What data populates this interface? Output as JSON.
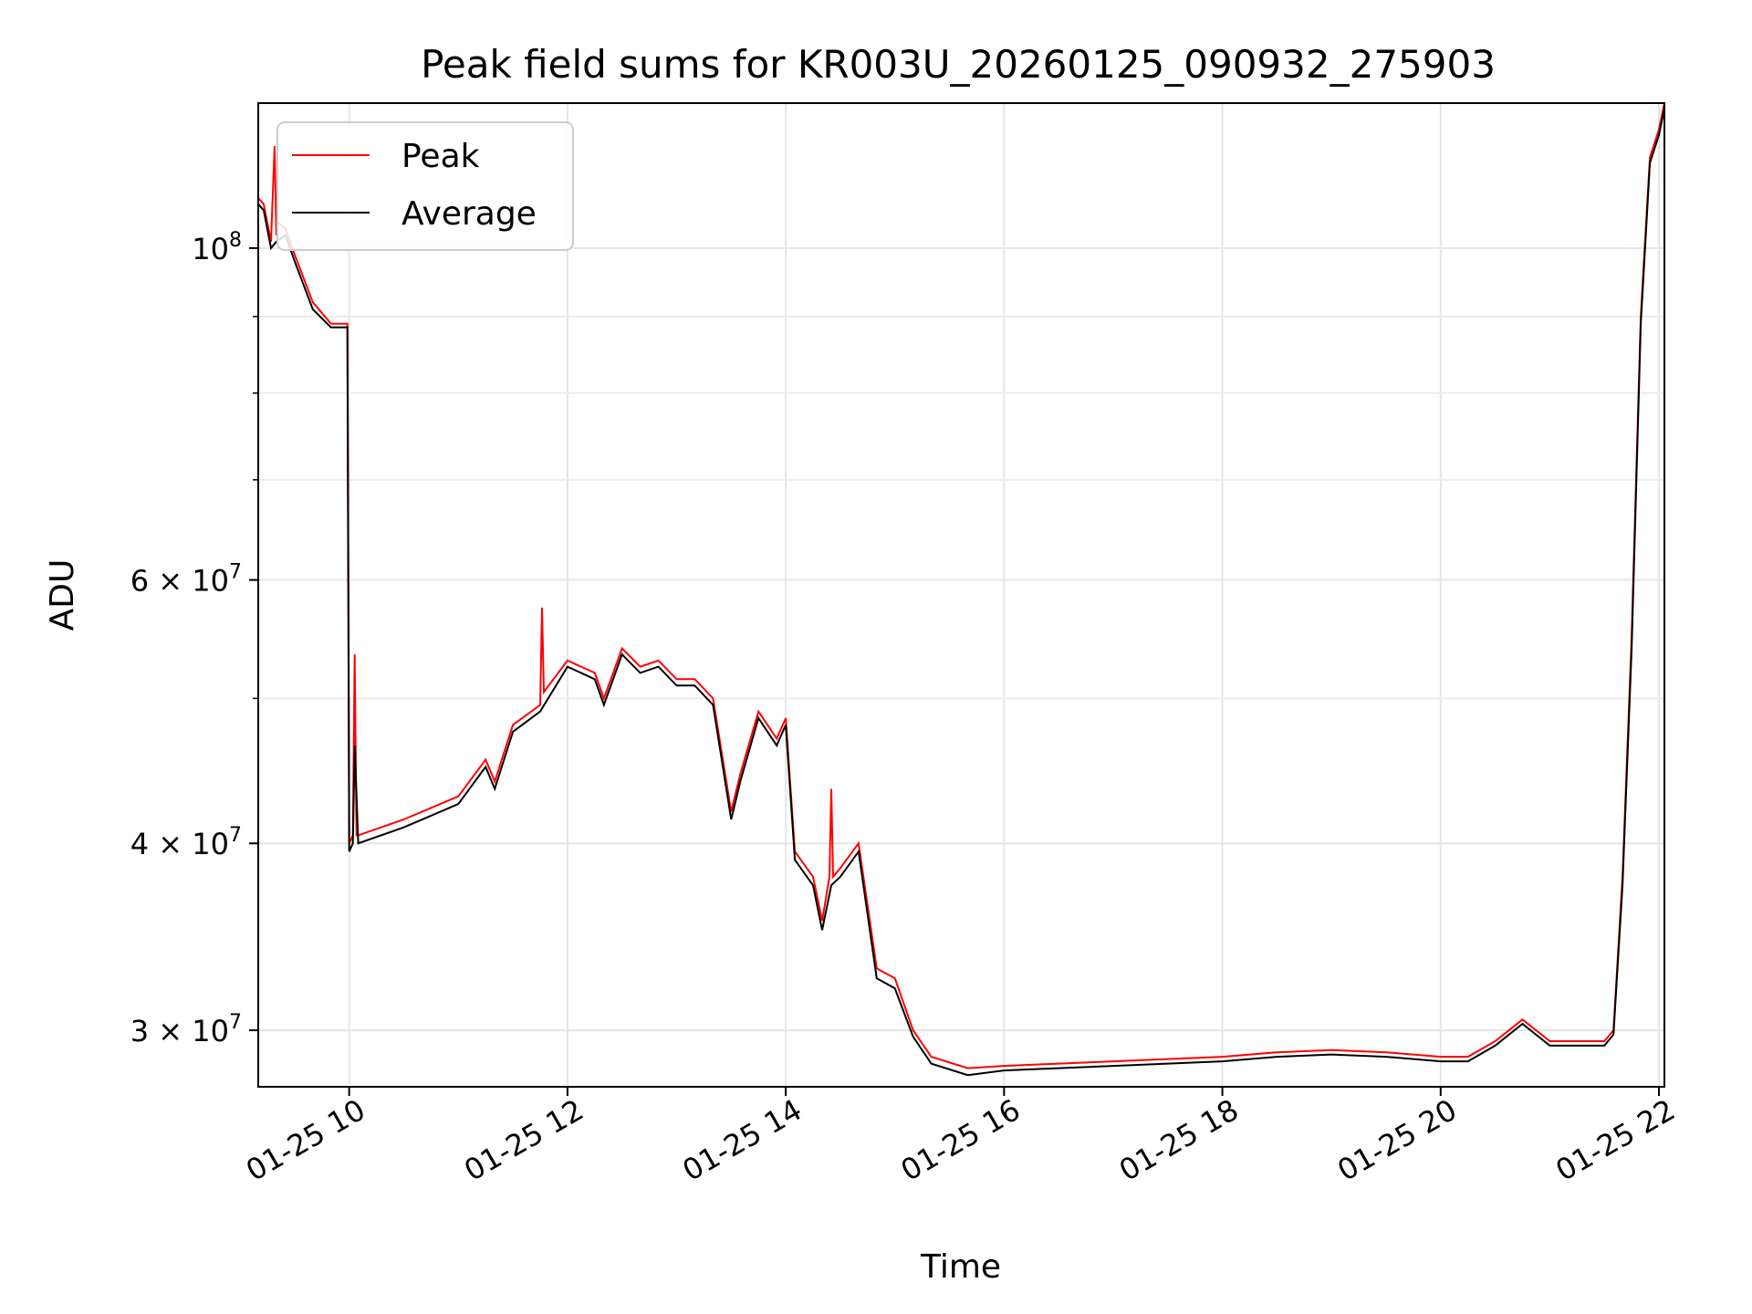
{
  "chart_data": {
    "type": "line",
    "title": "Peak field sums for KR003U_20260125_090932_275903",
    "xlabel": "Time",
    "ylabel": "ADU",
    "y_scale": "log",
    "xlim": [
      "2026-01-25 09:10",
      "2026-01-25 22:03"
    ],
    "ylim": [
      27500000,
      125000000
    ],
    "grid": true,
    "legend_position": "top-left",
    "x_ticks": [
      {
        "value": "2026-01-25 10:00",
        "label": "01-25 10"
      },
      {
        "value": "2026-01-25 12:00",
        "label": "01-25 12"
      },
      {
        "value": "2026-01-25 14:00",
        "label": "01-25 14"
      },
      {
        "value": "2026-01-25 16:00",
        "label": "01-25 16"
      },
      {
        "value": "2026-01-25 18:00",
        "label": "01-25 18"
      },
      {
        "value": "2026-01-25 20:00",
        "label": "01-25 20"
      },
      {
        "value": "2026-01-25 22:00",
        "label": "01-25 22"
      }
    ],
    "y_major_ticks": [
      {
        "value": 100000000,
        "mantissa": "",
        "exponent": "8"
      },
      {
        "value": 60000000,
        "mantissa": "6",
        "exponent": "7"
      },
      {
        "value": 40000000,
        "mantissa": "4",
        "exponent": "7"
      },
      {
        "value": 30000000,
        "mantissa": "3",
        "exponent": "7"
      }
    ],
    "y_minor_ticks": [
      50000000,
      70000000,
      80000000,
      90000000
    ],
    "series": [
      {
        "name": "Peak",
        "color": "#ff0000",
        "x": [
          "2026-01-25 09:10",
          "2026-01-25 09:13",
          "2026-01-25 09:17",
          "2026-01-25 09:19",
          "2026-01-25 09:20",
          "2026-01-25 09:21",
          "2026-01-25 09:25",
          "2026-01-25 09:30",
          "2026-01-25 09:40",
          "2026-01-25 09:50",
          "2026-01-25 09:58",
          "2026-01-25 09:59",
          "2026-01-25 10:00",
          "2026-01-25 10:02",
          "2026-01-25 10:03",
          "2026-01-25 10:04",
          "2026-01-25 10:05",
          "2026-01-25 10:30",
          "2026-01-25 11:00",
          "2026-01-25 11:15",
          "2026-01-25 11:20",
          "2026-01-25 11:30",
          "2026-01-25 11:45",
          "2026-01-25 11:46",
          "2026-01-25 11:47",
          "2026-01-25 12:00",
          "2026-01-25 12:15",
          "2026-01-25 12:20",
          "2026-01-25 12:30",
          "2026-01-25 12:40",
          "2026-01-25 12:50",
          "2026-01-25 13:00",
          "2026-01-25 13:10",
          "2026-01-25 13:20",
          "2026-01-25 13:30",
          "2026-01-25 13:35",
          "2026-01-25 13:45",
          "2026-01-25 13:55",
          "2026-01-25 14:00",
          "2026-01-25 14:05",
          "2026-01-25 14:15",
          "2026-01-25 14:20",
          "2026-01-25 14:24",
          "2026-01-25 14:25",
          "2026-01-25 14:26",
          "2026-01-25 14:30",
          "2026-01-25 14:40",
          "2026-01-25 14:50",
          "2026-01-25 15:00",
          "2026-01-25 15:10",
          "2026-01-25 15:20",
          "2026-01-25 15:40",
          "2026-01-25 16:00",
          "2026-01-25 16:30",
          "2026-01-25 17:00",
          "2026-01-25 17:30",
          "2026-01-25 18:00",
          "2026-01-25 18:30",
          "2026-01-25 19:00",
          "2026-01-25 19:30",
          "2026-01-25 20:00",
          "2026-01-25 20:15",
          "2026-01-25 20:30",
          "2026-01-25 20:45",
          "2026-01-25 21:00",
          "2026-01-25 21:10",
          "2026-01-25 21:30",
          "2026-01-25 21:35",
          "2026-01-25 21:40",
          "2026-01-25 21:45",
          "2026-01-25 21:50",
          "2026-01-25 21:55",
          "2026-01-25 22:00",
          "2026-01-25 22:03"
        ],
        "y": [
          108000000,
          107000000,
          101000000,
          117000000,
          102000000,
          104000000,
          103000000,
          99000000,
          92000000,
          89000000,
          89000000,
          89000000,
          40000000,
          40500000,
          53500000,
          40500000,
          40500000,
          41500000,
          43000000,
          45500000,
          44000000,
          48000000,
          49500000,
          57500000,
          50500000,
          53000000,
          52000000,
          50000000,
          54000000,
          52500000,
          53000000,
          51500000,
          51500000,
          50000000,
          42000000,
          44500000,
          49000000,
          47000000,
          48500000,
          39500000,
          38000000,
          35500000,
          38000000,
          43500000,
          38000000,
          38500000,
          40000000,
          33000000,
          32500000,
          30000000,
          28800000,
          28300000,
          28400000,
          28500000,
          28600000,
          28700000,
          28800000,
          29000000,
          29100000,
          29000000,
          28800000,
          28800000,
          29500000,
          30500000,
          29500000,
          29500000,
          29500000,
          30000000,
          38000000,
          55000000,
          90000000,
          115000000,
          120000000,
          125000000
        ]
      },
      {
        "name": "Average",
        "color": "#000000",
        "x": [
          "2026-01-25 09:10",
          "2026-01-25 09:13",
          "2026-01-25 09:17",
          "2026-01-25 09:20",
          "2026-01-25 09:25",
          "2026-01-25 09:30",
          "2026-01-25 09:40",
          "2026-01-25 09:50",
          "2026-01-25 09:58",
          "2026-01-25 09:59",
          "2026-01-25 10:00",
          "2026-01-25 10:02",
          "2026-01-25 10:03",
          "2026-01-25 10:05",
          "2026-01-25 10:30",
          "2026-01-25 11:00",
          "2026-01-25 11:15",
          "2026-01-25 11:20",
          "2026-01-25 11:30",
          "2026-01-25 11:45",
          "2026-01-25 12:00",
          "2026-01-25 12:15",
          "2026-01-25 12:20",
          "2026-01-25 12:30",
          "2026-01-25 12:40",
          "2026-01-25 12:50",
          "2026-01-25 13:00",
          "2026-01-25 13:10",
          "2026-01-25 13:20",
          "2026-01-25 13:30",
          "2026-01-25 13:35",
          "2026-01-25 13:45",
          "2026-01-25 13:55",
          "2026-01-25 14:00",
          "2026-01-25 14:05",
          "2026-01-25 14:15",
          "2026-01-25 14:20",
          "2026-01-25 14:25",
          "2026-01-25 14:30",
          "2026-01-25 14:40",
          "2026-01-25 14:50",
          "2026-01-25 15:00",
          "2026-01-25 15:10",
          "2026-01-25 15:20",
          "2026-01-25 15:40",
          "2026-01-25 16:00",
          "2026-01-25 16:30",
          "2026-01-25 17:00",
          "2026-01-25 17:30",
          "2026-01-25 18:00",
          "2026-01-25 18:30",
          "2026-01-25 19:00",
          "2026-01-25 19:30",
          "2026-01-25 20:00",
          "2026-01-25 20:15",
          "2026-01-25 20:30",
          "2026-01-25 20:45",
          "2026-01-25 21:00",
          "2026-01-25 21:10",
          "2026-01-25 21:30",
          "2026-01-25 21:35",
          "2026-01-25 21:40",
          "2026-01-25 21:45",
          "2026-01-25 21:50",
          "2026-01-25 21:55",
          "2026-01-25 22:00",
          "2026-01-25 22:03"
        ],
        "y": [
          107000000,
          106000000,
          100000000,
          101000000,
          102000000,
          98000000,
          91000000,
          88500000,
          88500000,
          88500000,
          39500000,
          40000000,
          46500000,
          40000000,
          41000000,
          42500000,
          45000000,
          43500000,
          47500000,
          49000000,
          52500000,
          51500000,
          49500000,
          53500000,
          52000000,
          52500000,
          51000000,
          51000000,
          49500000,
          41500000,
          44000000,
          48500000,
          46500000,
          48000000,
          39000000,
          37500000,
          35000000,
          37500000,
          38000000,
          39500000,
          32500000,
          32000000,
          29700000,
          28500000,
          28000000,
          28200000,
          28300000,
          28400000,
          28500000,
          28600000,
          28800000,
          28900000,
          28800000,
          28600000,
          28600000,
          29300000,
          30300000,
          29300000,
          29300000,
          29300000,
          29800000,
          37500000,
          54000000,
          89000000,
          114000000,
          119000000,
          124000000
        ]
      }
    ]
  }
}
